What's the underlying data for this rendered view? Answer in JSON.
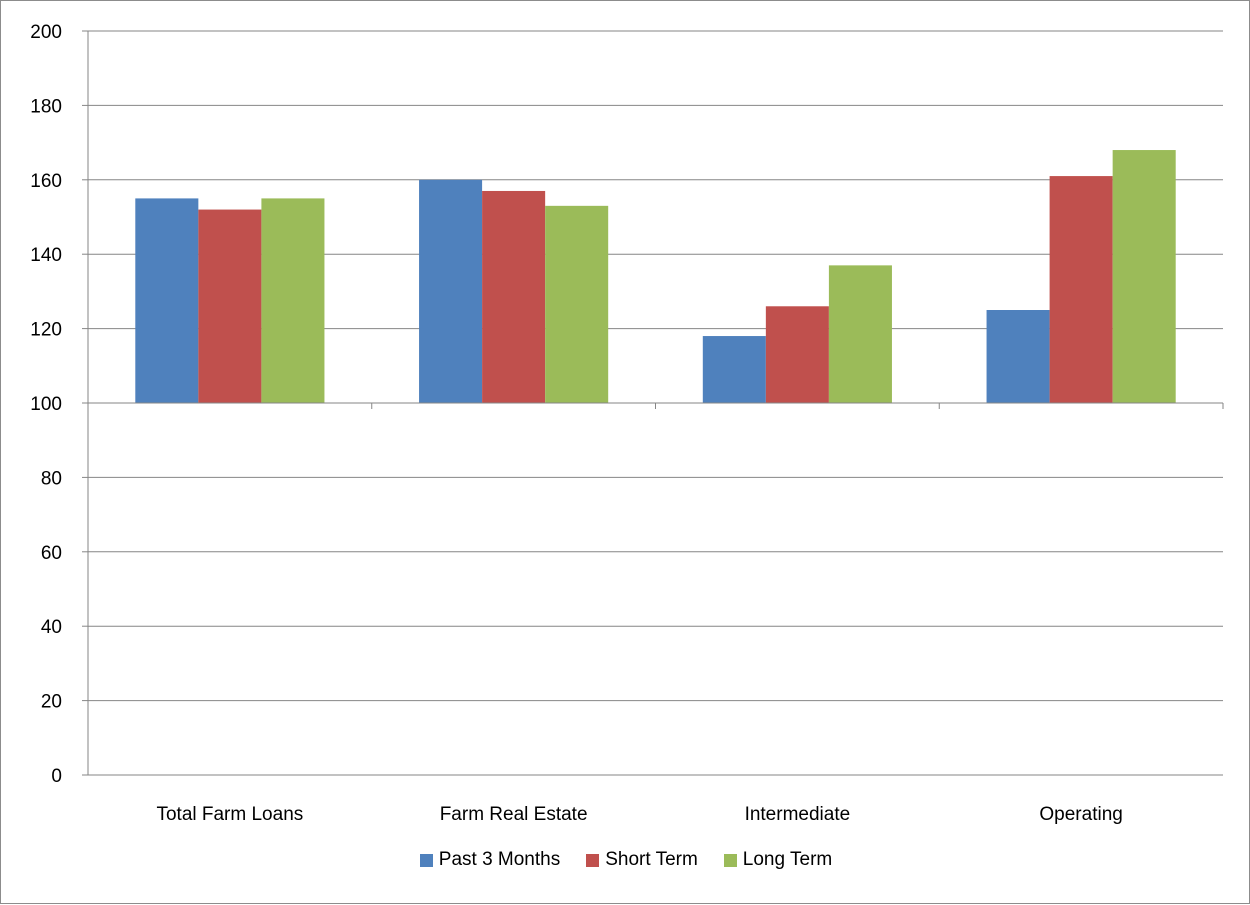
{
  "chart_data": {
    "type": "bar",
    "categories": [
      "Total Farm Loans",
      "Farm Real Estate",
      "Intermediate",
      "Operating"
    ],
    "series": [
      {
        "name": "Past 3 Months",
        "color": "#4f81bd",
        "values": [
          155,
          160,
          118,
          125
        ]
      },
      {
        "name": "Short Term",
        "color": "#c0504d",
        "values": [
          152,
          157,
          126,
          161
        ]
      },
      {
        "name": "Long Term",
        "color": "#9bbb59",
        "values": [
          155,
          153,
          137,
          168
        ]
      }
    ],
    "title": "",
    "xlabel": "",
    "ylabel": "",
    "ylim": [
      0,
      200
    ],
    "yticks": [
      "0",
      "20",
      "40",
      "60",
      "80",
      "100",
      "120",
      "140",
      "160",
      "180",
      "200"
    ],
    "baseline": 100,
    "grid": true,
    "legend_position": "bottom"
  }
}
